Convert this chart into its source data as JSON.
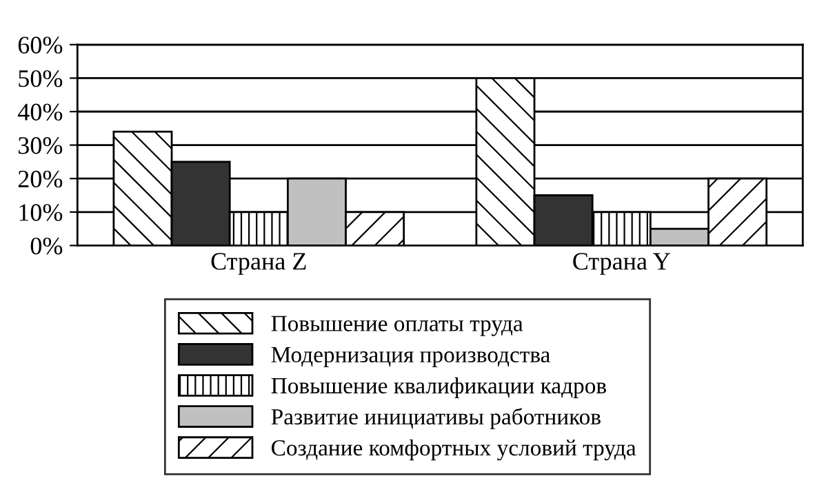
{
  "chart_data": {
    "type": "bar",
    "categories": [
      "Страна Z",
      "Страна Y"
    ],
    "series": [
      {
        "name": "Повышение оплаты труда",
        "color": "#ffffff",
        "values": [
          34,
          50
        ]
      },
      {
        "name": "Модернизация производства",
        "color": "#333333",
        "values": [
          25,
          15
        ]
      },
      {
        "name": "Повышение квалификации кадров",
        "color": "#ffffff",
        "values": [
          10,
          10
        ]
      },
      {
        "name": "Развитие инициативы работников",
        "color": "#c0c0c0",
        "values": [
          20,
          5
        ]
      },
      {
        "name": "Создание комфортных условий труда",
        "color": "#ffffff",
        "values": [
          10,
          20
        ]
      }
    ],
    "ylim": [
      0,
      60
    ],
    "yticks": [
      {
        "value": 0,
        "label": "0%"
      },
      {
        "value": 10,
        "label": "10%"
      },
      {
        "value": 20,
        "label": "20%"
      },
      {
        "value": 30,
        "label": "30%"
      },
      {
        "value": 40,
        "label": "40%"
      },
      {
        "value": 50,
        "label": "50%"
      },
      {
        "value": 60,
        "label": "60%"
      }
    ],
    "grid": "y",
    "legend": "bottom"
  }
}
